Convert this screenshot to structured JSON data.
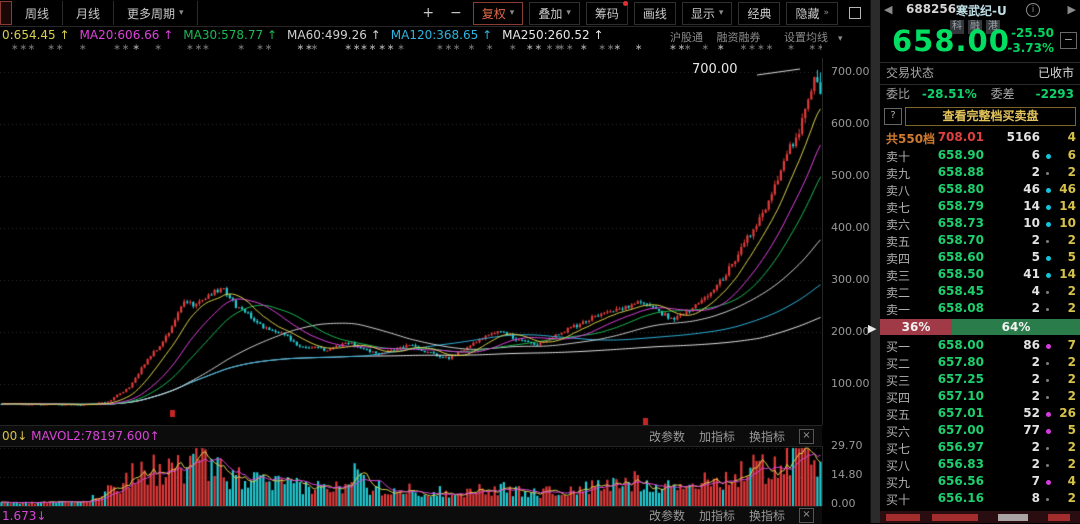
{
  "icons": {
    "dropdown": "▾",
    "hide_more": "»",
    "prev": "◀",
    "next": "▶",
    "collapse_handle": "▶",
    "minimize": "−",
    "info": "i",
    "help": "?",
    "close": "×"
  },
  "toolbar": {
    "tab_week": "周线",
    "tab_month": "月线",
    "tab_more": "更多周期",
    "zoom_in": "+",
    "zoom_out": "−",
    "fuquan": "复权",
    "overlay": "叠加",
    "chips": "筹码",
    "draw": "画线",
    "display": "显示",
    "classic": "经典",
    "hide": "隐藏"
  },
  "info": {
    "ma_labels": [
      {
        "text": "0:654.45",
        "arrow": "↑",
        "color": "#d8cf4a"
      },
      {
        "text": "MA20:606.66",
        "arrow": "↑",
        "color": "#de41de"
      },
      {
        "text": "MA30:578.77",
        "arrow": "↑",
        "color": "#1db954"
      },
      {
        "text": "MA60:499.26",
        "arrow": "↑",
        "color": "#cfcfcf"
      },
      {
        "text": "MA120:368.65",
        "arrow": "↑",
        "color": "#2fb3df"
      },
      {
        "text": "MA250:260.52",
        "arrow": "↑",
        "color": "#e6e6e6"
      }
    ],
    "links": [
      "沪股通",
      "融资融券",
      "设置均线"
    ]
  },
  "chart_data": {
    "type": "candlestick+volume",
    "peak_label": "700.00",
    "y_ticks": [
      700,
      600,
      500,
      400,
      300,
      200,
      100
    ],
    "vol_ticks": [
      "29.70",
      "14.80",
      "0.00"
    ],
    "vol_max": 29.7,
    "last_close": 658.0,
    "n_candles": 270,
    "up_color": "#e23b3b",
    "down_color": "#22ccd4",
    "grid_color": "#2e2e2e",
    "price_keyframes": [
      [
        0,
        62
      ],
      [
        0.1,
        60
      ],
      [
        0.13,
        66
      ],
      [
        0.155,
        92
      ],
      [
        0.175,
        140
      ],
      [
        0.2,
        188
      ],
      [
        0.215,
        232
      ],
      [
        0.225,
        262
      ],
      [
        0.235,
        248
      ],
      [
        0.25,
        268
      ],
      [
        0.27,
        285
      ],
      [
        0.285,
        252
      ],
      [
        0.3,
        236
      ],
      [
        0.32,
        210
      ],
      [
        0.345,
        196
      ],
      [
        0.36,
        176
      ],
      [
        0.4,
        164
      ],
      [
        0.42,
        181
      ],
      [
        0.44,
        170
      ],
      [
        0.46,
        156
      ],
      [
        0.48,
        166
      ],
      [
        0.5,
        176
      ],
      [
        0.52,
        161
      ],
      [
        0.545,
        149
      ],
      [
        0.56,
        161
      ],
      [
        0.585,
        186
      ],
      [
        0.61,
        201
      ],
      [
        0.63,
        186
      ],
      [
        0.655,
        176
      ],
      [
        0.68,
        196
      ],
      [
        0.7,
        211
      ],
      [
        0.72,
        226
      ],
      [
        0.755,
        246
      ],
      [
        0.78,
        256
      ],
      [
        0.8,
        241
      ],
      [
        0.82,
        224
      ],
      [
        0.835,
        236
      ],
      [
        0.85,
        256
      ],
      [
        0.865,
        272
      ],
      [
        0.88,
        302
      ],
      [
        0.9,
        348
      ],
      [
        0.915,
        392
      ],
      [
        0.93,
        432
      ],
      [
        0.945,
        482
      ],
      [
        0.96,
        542
      ],
      [
        0.975,
        592
      ],
      [
        0.985,
        642
      ],
      [
        0.995,
        692
      ],
      [
        1,
        658
      ]
    ],
    "vol_envelope": [
      [
        0,
        1.5
      ],
      [
        0.1,
        2
      ],
      [
        0.13,
        8
      ],
      [
        0.155,
        14
      ],
      [
        0.17,
        20
      ],
      [
        0.2,
        17
      ],
      [
        0.24,
        22
      ],
      [
        0.28,
        15
      ],
      [
        0.32,
        12
      ],
      [
        0.36,
        10
      ],
      [
        0.42,
        9
      ],
      [
        0.432,
        28
      ],
      [
        0.45,
        10
      ],
      [
        0.5,
        8
      ],
      [
        0.55,
        7
      ],
      [
        0.6,
        9
      ],
      [
        0.65,
        7
      ],
      [
        0.7,
        8
      ],
      [
        0.75,
        11
      ],
      [
        0.78,
        13
      ],
      [
        0.82,
        10
      ],
      [
        0.86,
        12
      ],
      [
        0.9,
        16
      ],
      [
        0.93,
        20
      ],
      [
        0.96,
        25
      ],
      [
        0.98,
        28
      ],
      [
        1,
        22
      ]
    ],
    "ma_periods": [
      250,
      120,
      60,
      30,
      20,
      10
    ],
    "ma_colors": {
      "10": "#d8cf4a",
      "20": "#de41de",
      "30": "#1db954",
      "60": "#cfcfcf",
      "120": "#2fb3df",
      "250": "#e6e6e6"
    },
    "ex_markers": [
      {
        "x": 170,
        "y": 352
      },
      {
        "x": 643,
        "y": 360
      }
    ]
  },
  "indicator_bar": {
    "left_prefix": "00",
    "left_prefix_arrow": "↓",
    "left_main": "MAVOL2:78197.600",
    "left_main_arrow": "↑",
    "actions": [
      "改参数",
      "加指标",
      "换指标"
    ]
  },
  "bottom_bar": {
    "left_text": "1.673",
    "left_arrow": "↓",
    "actions": [
      "改参数",
      "加指标",
      "换指标"
    ]
  },
  "panel": {
    "code": "688256",
    "name": "寒武纪-U",
    "badges": [
      "科",
      "融",
      "港"
    ],
    "price": "658.00",
    "change": "-25.50",
    "change_pct": "-3.73%",
    "status_label": "交易状态",
    "status_value": "已收市",
    "weibi_label": "委比",
    "weibi_value": "-28.51%",
    "weicha_label": "委差",
    "weicha_value": "-2293",
    "view_full": "查看完整档买卖盘",
    "total_label": "共550档",
    "total_price": "708.01",
    "total_vol": "5166",
    "total_extra": "4",
    "ratio_sell": "36%",
    "ratio_buy": "64%",
    "ratio_sell_pct": 36,
    "sells": [
      {
        "label": "卖十",
        "price": "658.90",
        "vol": "6",
        "dot": "cyan",
        "extra": "6"
      },
      {
        "label": "卖九",
        "price": "658.88",
        "vol": "2",
        "dot": "gray",
        "extra": "2"
      },
      {
        "label": "卖八",
        "price": "658.80",
        "vol": "46",
        "dot": "cyan",
        "extra": "46"
      },
      {
        "label": "卖七",
        "price": "658.79",
        "vol": "14",
        "dot": "cyan",
        "extra": "14"
      },
      {
        "label": "卖六",
        "price": "658.73",
        "vol": "10",
        "dot": "cyan",
        "extra": "10"
      },
      {
        "label": "卖五",
        "price": "658.70",
        "vol": "2",
        "dot": "gray",
        "extra": "2"
      },
      {
        "label": "卖四",
        "price": "658.60",
        "vol": "5",
        "dot": "cyan",
        "extra": "5"
      },
      {
        "label": "卖三",
        "price": "658.50",
        "vol": "41",
        "dot": "cyan",
        "extra": "14"
      },
      {
        "label": "卖二",
        "price": "658.45",
        "vol": "4",
        "dot": "gray",
        "extra": "2"
      },
      {
        "label": "卖一",
        "price": "658.08",
        "vol": "2",
        "dot": "gray",
        "extra": "2"
      }
    ],
    "buys": [
      {
        "label": "买一",
        "price": "658.00",
        "vol": "86",
        "dot": "magenta",
        "extra": "7"
      },
      {
        "label": "买二",
        "price": "657.80",
        "vol": "2",
        "dot": "gray",
        "extra": "2"
      },
      {
        "label": "买三",
        "price": "657.25",
        "vol": "2",
        "dot": "gray",
        "extra": "2"
      },
      {
        "label": "买四",
        "price": "657.10",
        "vol": "2",
        "dot": "gray",
        "extra": "2"
      },
      {
        "label": "买五",
        "price": "657.01",
        "vol": "52",
        "dot": "magenta",
        "extra": "26"
      },
      {
        "label": "买六",
        "price": "657.00",
        "vol": "77",
        "dot": "magenta",
        "extra": "5"
      },
      {
        "label": "买七",
        "price": "656.97",
        "vol": "2",
        "dot": "gray",
        "extra": "2"
      },
      {
        "label": "买八",
        "price": "656.83",
        "vol": "2",
        "dot": "gray",
        "extra": "2"
      },
      {
        "label": "买九",
        "price": "656.56",
        "vol": "7",
        "dot": "magenta",
        "extra": "4"
      },
      {
        "label": "买十",
        "price": "656.16",
        "vol": "8",
        "dot": "gray",
        "extra": "2"
      }
    ]
  }
}
